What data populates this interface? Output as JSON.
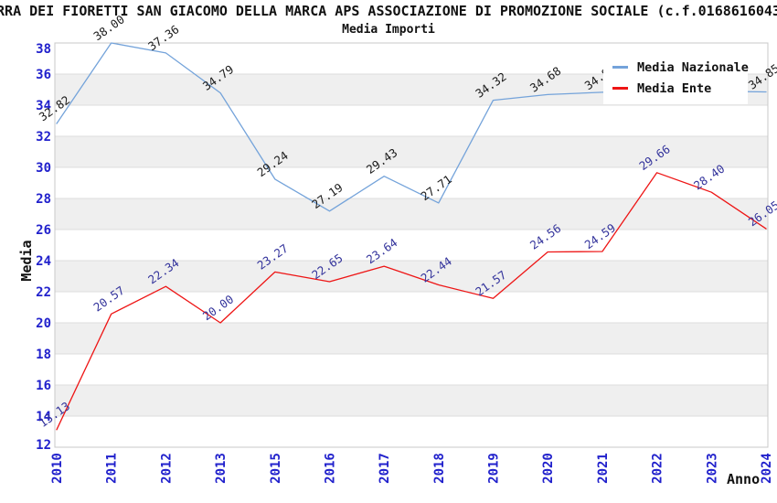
{
  "header": {
    "title": "RRA DEI FIORETTI SAN GIACOMO DELLA MARCA APS ASSOCIAZIONE DI PROMOZIONE SOCIALE (c.f.0168616043",
    "subtitle": "Media Importi"
  },
  "legend": {
    "items": [
      {
        "label": "Media Nazionale",
        "color": "#74a3da"
      },
      {
        "label": "Media Ente",
        "color": "#ee1515"
      }
    ]
  },
  "axes": {
    "y_title": "Media",
    "x_title": "Anno",
    "tick_label_color": "#2121cc",
    "y_tick_labels": [
      "12",
      "14",
      "16",
      "18",
      "20",
      "22",
      "24",
      "26",
      "28",
      "30",
      "32",
      "34",
      "36",
      "38"
    ]
  },
  "chart_data": {
    "type": "line",
    "title": "Media Importi",
    "xlabel": "Anno",
    "ylabel": "Media",
    "categories": [
      "2010",
      "2011",
      "2012",
      "2013",
      "2015",
      "2016",
      "2017",
      "2018",
      "2019",
      "2020",
      "2021",
      "2022",
      "2023",
      "2024"
    ],
    "series": [
      {
        "name": "Media Nazionale",
        "color": "#74a3da",
        "label_color": "#1a1a1a",
        "values": [
          32.82,
          38.0,
          37.36,
          34.79,
          29.24,
          27.19,
          29.43,
          27.71,
          34.32,
          34.68,
          34.83,
          34.9,
          34.9,
          34.85
        ],
        "point_labels": [
          "32.82",
          "38.00",
          "37.36",
          "34.79",
          "29.24",
          "27.19",
          "29.43",
          "27.71",
          "34.32",
          "34.68",
          "34.83",
          "",
          "",
          "34.85"
        ]
      },
      {
        "name": "Media Ente",
        "color": "#ee1515",
        "label_color": "#32329b",
        "values": [
          13.13,
          20.57,
          22.34,
          20.0,
          23.27,
          22.65,
          23.64,
          22.44,
          21.57,
          24.56,
          24.59,
          29.66,
          28.4,
          26.05
        ],
        "point_labels": [
          "13.13",
          "20.57",
          "22.34",
          "20.00",
          "23.27",
          "22.65",
          "23.64",
          "22.44",
          "21.57",
          "24.56",
          "24.59",
          "29.66",
          "28.40",
          "26.05"
        ]
      }
    ],
    "ylim": [
      12,
      38
    ],
    "ytick_step": 2,
    "grid": true,
    "background_bands": {
      "color": "#efefef",
      "ranges": [
        [
          14,
          16
        ],
        [
          18,
          20
        ],
        [
          22,
          24
        ],
        [
          26,
          28
        ],
        [
          30,
          32
        ],
        [
          34,
          36
        ]
      ]
    },
    "legend_position": "top-right"
  }
}
